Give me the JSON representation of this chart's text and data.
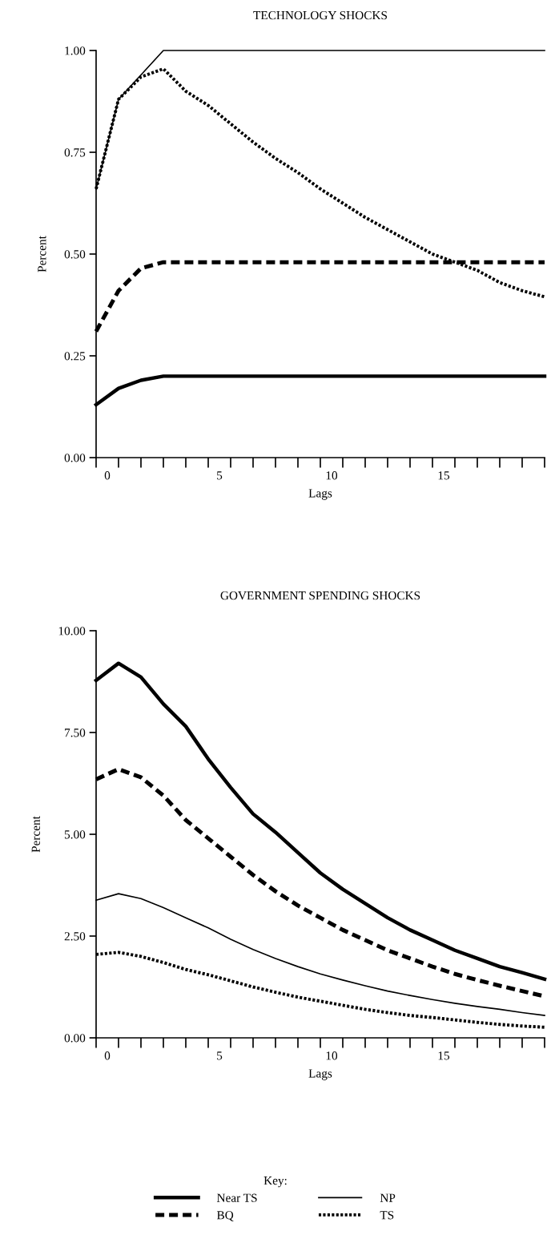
{
  "chart_data": [
    {
      "type": "line",
      "title": "TECHNOLOGY SHOCKS",
      "xlabel": "Lags",
      "ylabel": "Percent",
      "x": [
        0,
        1,
        2,
        3,
        4,
        5,
        6,
        7,
        8,
        9,
        10,
        11,
        12,
        13,
        14,
        15,
        16,
        17,
        18,
        19,
        20
      ],
      "xlim": [
        0,
        20
      ],
      "xticks": [
        {
          "value": 0,
          "label": null
        },
        {
          "value": 1,
          "label": null
        },
        {
          "value": 2,
          "label": null
        },
        {
          "value": 3,
          "label": null
        },
        {
          "value": 4,
          "label": null
        },
        {
          "value": 5,
          "label": null
        },
        {
          "value": 6,
          "label": null
        },
        {
          "value": 7,
          "label": null
        },
        {
          "value": 8,
          "label": null
        },
        {
          "value": 9,
          "label": null
        },
        {
          "value": 10,
          "label": null
        },
        {
          "value": 11,
          "label": null
        },
        {
          "value": 12,
          "label": null
        },
        {
          "value": 13,
          "label": null
        },
        {
          "value": 14,
          "label": null
        },
        {
          "value": 15,
          "label": null
        },
        {
          "value": 16,
          "label": null
        },
        {
          "value": 17,
          "label": null
        },
        {
          "value": 18,
          "label": null
        },
        {
          "value": 19,
          "label": null
        },
        {
          "value": 20,
          "label": null
        },
        {
          "value": 0.5,
          "label": "0"
        },
        {
          "value": 5.5,
          "label": "5"
        },
        {
          "value": 10.5,
          "label": "10"
        },
        {
          "value": 15.5,
          "label": "15"
        }
      ],
      "ylim": [
        0,
        1
      ],
      "yticks": [
        {
          "value": 0,
          "label": "0.00"
        },
        {
          "value": 0.25,
          "label": "0.25"
        },
        {
          "value": 0.5,
          "label": "0.50"
        },
        {
          "value": 0.75,
          "label": "0.75"
        },
        {
          "value": 1,
          "label": "1.00"
        }
      ],
      "grid": false,
      "series": [
        {
          "color": "#000000",
          "line_style": "solid",
          "values": [
            0.13,
            0.17,
            0.19,
            0.2,
            0.2,
            0.2,
            0.2,
            0.2,
            0.2,
            0.2,
            0.2,
            0.2,
            0.2,
            0.2,
            0.2,
            0.2,
            0.2,
            0.2,
            0.2,
            0.2,
            0.2
          ]
        },
        {
          "color": "#000000",
          "line_style": "dashed",
          "values": [
            0.31,
            0.41,
            0.465,
            0.48,
            0.48,
            0.48,
            0.48,
            0.48,
            0.48,
            0.48,
            0.48,
            0.48,
            0.48,
            0.48,
            0.48,
            0.48,
            0.48,
            0.48,
            0.48,
            0.48,
            0.48
          ]
        },
        {
          "color": "#000000",
          "line_style": "solid",
          "values": [
            0.66,
            0.88,
            0.94,
            1.0,
            1.0,
            1.0,
            1.0,
            1.0,
            1.0,
            1.0,
            1.0,
            1.0,
            1.0,
            1.0,
            1.0,
            1.0,
            1.0,
            1.0,
            1.0,
            1.0,
            1.0
          ]
        },
        {
          "color": "#000000",
          "line_style": "dotted",
          "values": [
            0.66,
            0.88,
            0.935,
            0.955,
            0.9,
            0.865,
            0.82,
            0.775,
            0.735,
            0.7,
            0.66,
            0.625,
            0.59,
            0.56,
            0.53,
            0.5,
            0.48,
            0.46,
            0.43,
            0.41,
            0.395
          ]
        }
      ]
    },
    {
      "type": "line",
      "title": "GOVERNMENT SPENDING SHOCKS",
      "xlabel": "Lags",
      "ylabel": "Percent",
      "x": [
        0,
        1,
        2,
        3,
        4,
        5,
        6,
        7,
        8,
        9,
        10,
        11,
        12,
        13,
        14,
        15,
        16,
        17,
        18,
        19,
        20
      ],
      "xlim": [
        0,
        20
      ],
      "xticks": [
        {
          "value": 0,
          "label": null
        },
        {
          "value": 1,
          "label": null
        },
        {
          "value": 2,
          "label": null
        },
        {
          "value": 3,
          "label": null
        },
        {
          "value": 4,
          "label": null
        },
        {
          "value": 5,
          "label": null
        },
        {
          "value": 6,
          "label": null
        },
        {
          "value": 7,
          "label": null
        },
        {
          "value": 8,
          "label": null
        },
        {
          "value": 9,
          "label": null
        },
        {
          "value": 10,
          "label": null
        },
        {
          "value": 11,
          "label": null
        },
        {
          "value": 12,
          "label": null
        },
        {
          "value": 13,
          "label": null
        },
        {
          "value": 14,
          "label": null
        },
        {
          "value": 15,
          "label": null
        },
        {
          "value": 16,
          "label": null
        },
        {
          "value": 17,
          "label": null
        },
        {
          "value": 18,
          "label": null
        },
        {
          "value": 19,
          "label": null
        },
        {
          "value": 20,
          "label": null
        },
        {
          "value": 0.5,
          "label": "0"
        },
        {
          "value": 5.5,
          "label": "5"
        },
        {
          "value": 10.5,
          "label": "10"
        },
        {
          "value": 15.5,
          "label": "15"
        }
      ],
      "ylim": [
        0,
        10
      ],
      "yticks": [
        {
          "value": 0,
          "label": "0.00"
        },
        {
          "value": 2.5,
          "label": "2.50"
        },
        {
          "value": 5,
          "label": "5.00"
        },
        {
          "value": 7.5,
          "label": "7.50"
        },
        {
          "value": 10,
          "label": "10.00"
        }
      ],
      "grid": false,
      "legend": "bottom",
      "legend_title": "Key:",
      "series": [
        {
          "name": "Near TS",
          "color": "#000000",
          "line_style": "solid",
          "values": [
            8.78,
            9.2,
            8.86,
            8.2,
            7.65,
            6.85,
            6.15,
            5.5,
            5.05,
            4.55,
            4.05,
            3.65,
            3.3,
            2.95,
            2.65,
            2.4,
            2.15,
            1.95,
            1.75,
            1.6,
            1.44
          ]
        },
        {
          "name": "BQ",
          "color": "#000000",
          "line_style": "dashed",
          "values": [
            6.35,
            6.6,
            6.4,
            5.95,
            5.35,
            4.9,
            4.45,
            4.0,
            3.6,
            3.25,
            2.95,
            2.65,
            2.4,
            2.15,
            1.95,
            1.75,
            1.57,
            1.42,
            1.28,
            1.15,
            1.02
          ]
        },
        {
          "name": "NP",
          "color": "#000000",
          "line_style": "solid",
          "values": [
            3.38,
            3.54,
            3.42,
            3.2,
            2.95,
            2.7,
            2.42,
            2.17,
            1.95,
            1.75,
            1.57,
            1.42,
            1.28,
            1.15,
            1.04,
            0.94,
            0.85,
            0.77,
            0.7,
            0.62,
            0.55
          ]
        },
        {
          "name": "TS",
          "color": "#000000",
          "line_style": "dotted",
          "values": [
            2.05,
            2.1,
            2.0,
            1.85,
            1.68,
            1.55,
            1.4,
            1.25,
            1.12,
            1.0,
            0.9,
            0.8,
            0.7,
            0.62,
            0.55,
            0.5,
            0.44,
            0.38,
            0.33,
            0.29,
            0.26
          ]
        }
      ]
    }
  ]
}
